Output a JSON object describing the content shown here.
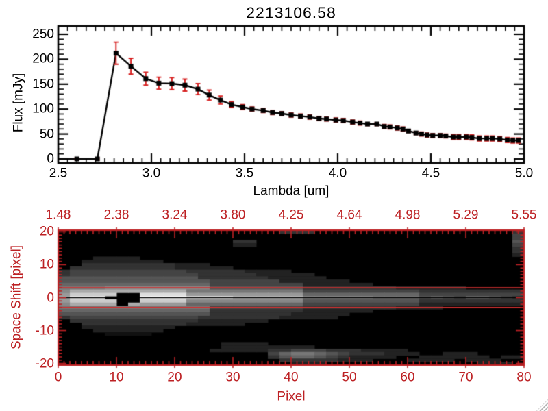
{
  "title": "2213106.58",
  "colors": {
    "background": "#ffffff",
    "black": "#000000",
    "axis_red": "#bd2124",
    "error_red": "#d62020",
    "aperture_red": "#d03030",
    "grip_gray": "#b9b9b9"
  },
  "chart_data": [
    {
      "type": "line",
      "title": "2213106.58",
      "xlabel": "Lambda [um]",
      "ylabel": "Flux [mJy]",
      "xlim": [
        2.5,
        5.0
      ],
      "ylim": [
        0,
        250
      ],
      "x_tick_values": [
        2.5,
        3.0,
        3.5,
        4.0,
        4.5,
        5.0
      ],
      "x_tick_labels": [
        "2.5",
        "3.0",
        "3.5",
        "4.0",
        "4.5",
        "5.0"
      ],
      "y_tick_values": [
        0,
        50,
        100,
        150,
        200,
        250
      ],
      "y_tick_labels": [
        "0",
        "50",
        "100",
        "150",
        "200",
        "250"
      ],
      "x_minor_step": 0.05,
      "y_minor_step": 10,
      "marker": "filled-square",
      "line_start": [
        2.5,
        0
      ],
      "points": [
        [
          2.6,
          0,
          2
        ],
        [
          2.71,
          0,
          2
        ],
        [
          2.81,
          212,
          22
        ],
        [
          2.89,
          186,
          16
        ],
        [
          2.97,
          161,
          13
        ],
        [
          3.04,
          152,
          12
        ],
        [
          3.11,
          151,
          12
        ],
        [
          3.18,
          148,
          12
        ],
        [
          3.25,
          140,
          11
        ],
        [
          3.31,
          128,
          10
        ],
        [
          3.37,
          118,
          8
        ],
        [
          3.43,
          109,
          6
        ],
        [
          3.49,
          104,
          5
        ],
        [
          3.54,
          100,
          4
        ],
        [
          3.6,
          97,
          4
        ],
        [
          3.65,
          93,
          4
        ],
        [
          3.7,
          91,
          4
        ],
        [
          3.75,
          88,
          4
        ],
        [
          3.8,
          86,
          4
        ],
        [
          3.85,
          84,
          4
        ],
        [
          3.9,
          81,
          4
        ],
        [
          3.94,
          80,
          4
        ],
        [
          3.99,
          78,
          4
        ],
        [
          4.03,
          77,
          4
        ],
        [
          4.08,
          74,
          4
        ],
        [
          4.12,
          72,
          4
        ],
        [
          4.16,
          70,
          3
        ],
        [
          4.21,
          70,
          3
        ],
        [
          4.25,
          65,
          4
        ],
        [
          4.28,
          64,
          4
        ],
        [
          4.32,
          62,
          4
        ],
        [
          4.35,
          60,
          4
        ],
        [
          4.38,
          56,
          3
        ],
        [
          4.42,
          52,
          3
        ],
        [
          4.45,
          50,
          4
        ],
        [
          4.48,
          48,
          4
        ],
        [
          4.51,
          47,
          4
        ],
        [
          4.55,
          47,
          4
        ],
        [
          4.58,
          46,
          4
        ],
        [
          4.62,
          44,
          5
        ],
        [
          4.65,
          44,
          5
        ],
        [
          4.69,
          44,
          5
        ],
        [
          4.72,
          43,
          5
        ],
        [
          4.76,
          41,
          5
        ],
        [
          4.8,
          41,
          5
        ],
        [
          4.83,
          41,
          5
        ],
        [
          4.87,
          40,
          5
        ],
        [
          4.91,
          38,
          5
        ],
        [
          4.94,
          37,
          5
        ],
        [
          4.97,
          37,
          5
        ]
      ]
    },
    {
      "type": "heatmap",
      "xlabel": "Pixel",
      "ylabel": "Space Shift [pixel]",
      "top_axis_tick_labels": [
        "1.48",
        "2.38",
        "3.24",
        "3.80",
        "4.25",
        "4.64",
        "4.98",
        "5.29",
        "5.55"
      ],
      "xlim": [
        0,
        80
      ],
      "ylim": [
        -20.5,
        20.5
      ],
      "x_tick_values": [
        0,
        10,
        20,
        30,
        40,
        50,
        60,
        70,
        80
      ],
      "x_tick_labels": [
        "0",
        "10",
        "20",
        "30",
        "40",
        "50",
        "60",
        "70",
        "80"
      ],
      "y_tick_values": [
        20,
        10,
        0,
        -10,
        -20
      ],
      "y_tick_labels": [
        "20",
        "10",
        "0",
        "-10",
        "-20"
      ],
      "x_minor_step": 1,
      "y_minor_step": 1,
      "intensity_scale": "hex 0-f, 0=black, f=white, each cell = 2 detector px wide x 1 shift tall",
      "rows": [
        "0000000000000000000333000000000000000003",
        "0000000000000000000000000000000000000004",
        "0000000000000000000000000000000000000004",
        "0000000000000003300000000000000000000005",
        "0000000000000002200000000000000000000004",
        "0000000000000000000000000000000000000003",
        "0000000000000000000000000000000000000003",
        "0000000000000000000000000000000000000002",
        "0002222000000000000000000000000000000000",
        "0022222220000000000000000000000000000000",
        "0033333333222000000000000000000000000000",
        "0333333333222220000000000000000000000000",
        "3444444444433333222200000000000000000000",
        "3444444444443333322222000000000000000000",
        "5555555555553333332222200000000000000000",
        "5555555555555444444222222000000000000000",
        "6666666666666444444442222220000000000000",
        "7777888888888555555553333333322222200000",
        "8aaaaaaaaaa77777777774444444444333333333",
        "9cccc00dddd99999999996666666666444444444",
        "aeee000ffffddddbbbbbb8888887777565466543",
        "9cccc00cccc88888888885555555555333333333",
        "8aaaa0a999966666666664444444444222222222",
        "7777777777777444444443333333322220000000",
        "6666666666666333333332222220000000000000",
        "5555555555555333333322222000000000000000",
        "3444444444443333333222220000000000000000",
        "0333333333332222220000000000000000000000",
        "0033333333322222000000000000000000000000",
        "0022222222000000000000000000000000000000",
        "0002222220000000000000000000000000000000",
        "0000111100000000000000000000000000000000",
        "0000000000000000000000000000000000000000",
        "0000000000000000000000000000000000000000",
        "0000000000000022220000000000000000000000",
        "0000000000000022222222000000000000000000",
        "0000000000000222223344433322220000000000",
        "0000000000000000004677654333222002220000",
        "0000000000000000003566543222200222222022",
        "0000000000000000000333332220002222022200",
        "0000000000000000000022200000000000002220"
      ],
      "overlays": {
        "aperture_lines_shift": [
          3,
          -3
        ],
        "trace_line_shift": 0
      }
    }
  ]
}
